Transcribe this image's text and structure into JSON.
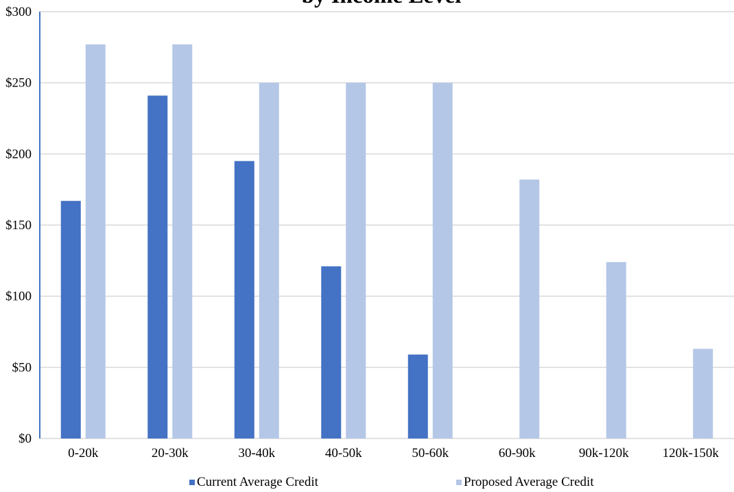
{
  "chart_data": {
    "type": "bar",
    "title": "by Income Level",
    "categories": [
      "0-20k",
      "20-30k",
      "30-40k",
      "40-50k",
      "50-60k",
      "60-90k",
      "90k-120k",
      "120k-150k"
    ],
    "series": [
      {
        "name": "Current Average Credit",
        "color": "#4472c4",
        "values": [
          167,
          241,
          195,
          121,
          59,
          null,
          null,
          null
        ]
      },
      {
        "name": "Proposed Average Credit",
        "color": "#b4c7e7",
        "values": [
          277,
          277,
          250,
          250,
          250,
          182,
          124,
          63
        ]
      }
    ],
    "yticks": [
      "$0",
      "$50",
      "$100",
      "$150",
      "$200",
      "$250",
      "$300"
    ],
    "ylim": [
      0,
      300
    ],
    "grid": true,
    "legend_position": "bottom"
  }
}
